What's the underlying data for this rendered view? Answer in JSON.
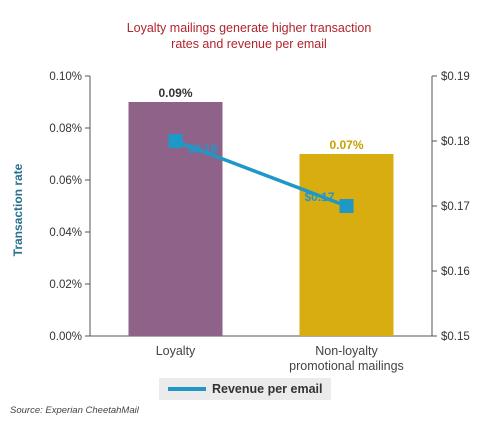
{
  "chart_data": {
    "type": "bar+line",
    "title_lines": [
      "Loyalty mailings generate higher transaction",
      "rates and revenue per email"
    ],
    "categories": [
      [
        "Loyalty"
      ],
      [
        "Non-loyalty",
        "promotional mailings"
      ]
    ],
    "ylabel": "Transaction rate",
    "ylim": [
      0,
      0.1
    ],
    "y_ticks": [
      "0.00%",
      "0.02%",
      "0.04%",
      "0.06%",
      "0.08%",
      "0.10%"
    ],
    "y2lim": [
      0.15,
      0.19
    ],
    "y2_ticks": [
      "$0.15",
      "$0.16",
      "$0.17",
      "$0.18",
      "$0.19"
    ],
    "bars": {
      "values": [
        0.09,
        0.07
      ],
      "labels": [
        "0.09%",
        "0.07%"
      ],
      "colors": [
        "#8e6289",
        "#d8ad10"
      ],
      "label_colors": [
        "#333333",
        "#c8a000"
      ]
    },
    "line": {
      "name": "Revenue per email",
      "values": [
        0.18,
        0.17
      ],
      "labels": [
        "$0.18",
        "$0.17"
      ],
      "color": "#1f98c8"
    },
    "legend_position": "bottom",
    "source": "Source: Experian CheetahMail"
  }
}
